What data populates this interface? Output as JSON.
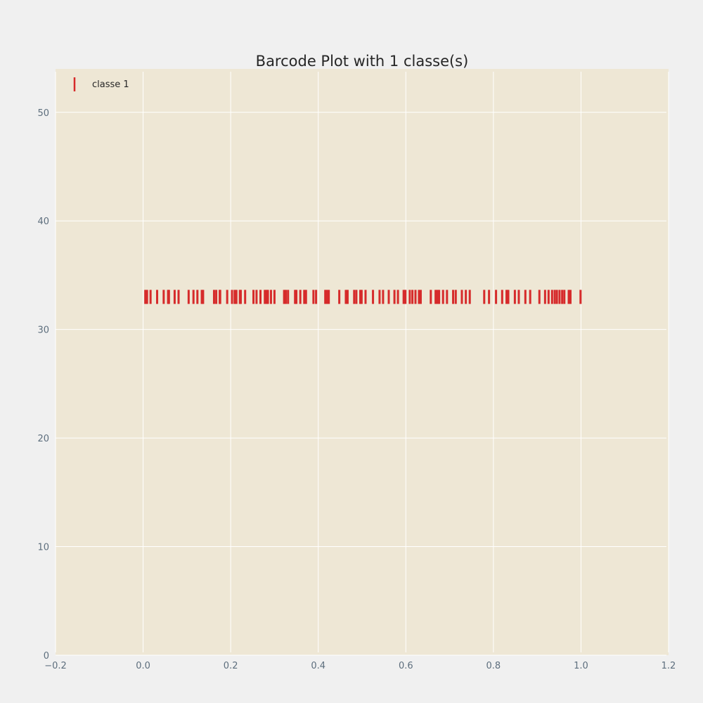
{
  "chart_data": {
    "type": "scatter",
    "title": "Barcode Plot with 1 classe(s)",
    "xlabel": "",
    "ylabel": "",
    "xlim": [
      -0.2,
      1.2
    ],
    "ylim": [
      0,
      54
    ],
    "xticks": [
      -0.2,
      0.0,
      0.2,
      0.4,
      0.6,
      0.8,
      1.0,
      1.2
    ],
    "xtick_labels": [
      "−0.2",
      "0.0",
      "0.2",
      "0.4",
      "0.6",
      "0.8",
      "1.0",
      "1.2"
    ],
    "yticks": [
      0,
      10,
      20,
      30,
      40,
      50
    ],
    "ytick_labels": [
      "0",
      "10",
      "20",
      "30",
      "40",
      "50"
    ],
    "grid": true,
    "legend_position": "top-left",
    "colors": {
      "background": "#f0f0f0",
      "plot_area": "#eee7d5",
      "grid": "#ffffff",
      "series": "#d62b2b"
    },
    "series": [
      {
        "name": "classe 1",
        "marker": "vertical-line",
        "y": 33,
        "x": [
          0.005,
          0.009,
          0.017,
          0.032,
          0.047,
          0.057,
          0.059,
          0.072,
          0.081,
          0.104,
          0.115,
          0.124,
          0.134,
          0.137,
          0.162,
          0.167,
          0.175,
          0.176,
          0.192,
          0.203,
          0.209,
          0.213,
          0.221,
          0.223,
          0.233,
          0.252,
          0.259,
          0.268,
          0.278,
          0.282,
          0.285,
          0.292,
          0.3,
          0.322,
          0.326,
          0.331,
          0.347,
          0.35,
          0.359,
          0.368,
          0.372,
          0.389,
          0.395,
          0.416,
          0.42,
          0.424,
          0.448,
          0.463,
          0.467,
          0.482,
          0.487,
          0.496,
          0.499,
          0.508,
          0.525,
          0.54,
          0.548,
          0.561,
          0.574,
          0.582,
          0.595,
          0.599,
          0.609,
          0.615,
          0.622,
          0.63,
          0.634,
          0.657,
          0.668,
          0.672,
          0.676,
          0.685,
          0.694,
          0.708,
          0.714,
          0.728,
          0.737,
          0.746,
          0.779,
          0.79,
          0.806,
          0.82,
          0.83,
          0.834,
          0.849,
          0.858,
          0.873,
          0.884,
          0.905,
          0.918,
          0.926,
          0.934,
          0.94,
          0.945,
          0.951,
          0.957,
          0.962,
          0.972,
          0.976,
          0.999
        ]
      }
    ]
  }
}
